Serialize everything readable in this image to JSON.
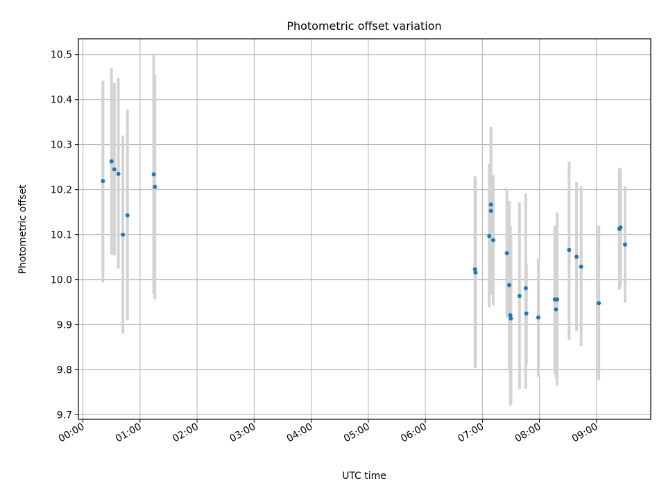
{
  "chart_data": {
    "type": "scatter",
    "title": "Photometric offset variation",
    "xlabel": "UTC time",
    "ylabel": "Photometric offset",
    "xlim": [
      -0.08,
      9.95
    ],
    "ylim": [
      9.69,
      10.535
    ],
    "x_ticks": [
      0,
      1,
      2,
      3,
      4,
      5,
      6,
      7,
      8,
      9
    ],
    "x_tick_labels": [
      "00:00",
      "01:00",
      "02:00",
      "03:00",
      "04:00",
      "05:00",
      "06:00",
      "07:00",
      "08:00",
      "09:00"
    ],
    "y_ticks": [
      9.7,
      9.8,
      9.9,
      10.0,
      10.1,
      10.2,
      10.3,
      10.4,
      10.5
    ],
    "y_tick_labels": [
      "9.7",
      "9.8",
      "9.9",
      "10.0",
      "10.1",
      "10.2",
      "10.3",
      "10.4",
      "10.5"
    ],
    "grid": true,
    "colors": {
      "point": "#1f77b4",
      "errorbar": "#d3d3d3",
      "grid": "#b0b0b0"
    },
    "points": [
      {
        "t": 0.35,
        "y": 10.219,
        "lo": 9.994,
        "hi": 10.442
      },
      {
        "t": 0.5,
        "y": 10.263,
        "lo": 10.056,
        "hi": 10.47
      },
      {
        "t": 0.55,
        "y": 10.245,
        "lo": 10.054,
        "hi": 10.437
      },
      {
        "t": 0.62,
        "y": 10.235,
        "lo": 10.025,
        "hi": 10.448
      },
      {
        "t": 0.7,
        "y": 10.1,
        "lo": 9.88,
        "hi": 10.32
      },
      {
        "t": 0.78,
        "y": 10.143,
        "lo": 9.91,
        "hi": 10.378
      },
      {
        "t": 1.24,
        "y": 10.234,
        "lo": 9.968,
        "hi": 10.5
      },
      {
        "t": 1.26,
        "y": 10.206,
        "lo": 9.957,
        "hi": 10.455
      },
      {
        "t": 6.87,
        "y": 10.023,
        "lo": 9.804,
        "hi": 10.23
      },
      {
        "t": 6.88,
        "y": 10.016,
        "lo": 9.804,
        "hi": 10.225
      },
      {
        "t": 7.12,
        "y": 10.097,
        "lo": 9.939,
        "hi": 10.258
      },
      {
        "t": 7.15,
        "y": 10.167,
        "lo": 9.992,
        "hi": 10.34
      },
      {
        "t": 7.15,
        "y": 10.153,
        "lo": 9.967,
        "hi": 10.338
      },
      {
        "t": 7.19,
        "y": 10.088,
        "lo": 9.943,
        "hi": 10.232
      },
      {
        "t": 7.43,
        "y": 10.059,
        "lo": 9.916,
        "hi": 10.203
      },
      {
        "t": 7.47,
        "y": 9.988,
        "lo": 9.801,
        "hi": 10.175
      },
      {
        "t": 7.49,
        "y": 9.921,
        "lo": 9.72,
        "hi": 10.12
      },
      {
        "t": 7.5,
        "y": 9.914,
        "lo": 9.726,
        "hi": 10.1
      },
      {
        "t": 7.65,
        "y": 9.964,
        "lo": 9.758,
        "hi": 10.172
      },
      {
        "t": 7.76,
        "y": 9.981,
        "lo": 9.758,
        "hi": 10.192
      },
      {
        "t": 7.77,
        "y": 9.925,
        "lo": 9.812,
        "hi": 10.035
      },
      {
        "t": 7.98,
        "y": 9.916,
        "lo": 9.784,
        "hi": 10.046
      },
      {
        "t": 8.27,
        "y": 9.956,
        "lo": 9.792,
        "hi": 10.12
      },
      {
        "t": 8.29,
        "y": 9.934,
        "lo": 9.782,
        "hi": 10.097
      },
      {
        "t": 8.31,
        "y": 9.956,
        "lo": 9.764,
        "hi": 10.149
      },
      {
        "t": 8.52,
        "y": 10.066,
        "lo": 9.867,
        "hi": 10.262
      },
      {
        "t": 8.65,
        "y": 10.051,
        "lo": 9.886,
        "hi": 10.217
      },
      {
        "t": 8.73,
        "y": 10.029,
        "lo": 9.853,
        "hi": 10.208
      },
      {
        "t": 9.04,
        "y": 9.948,
        "lo": 9.778,
        "hi": 10.12
      },
      {
        "t": 9.4,
        "y": 10.113,
        "lo": 9.978,
        "hi": 10.248
      },
      {
        "t": 9.42,
        "y": 10.116,
        "lo": 9.985,
        "hi": 10.248
      },
      {
        "t": 9.5,
        "y": 10.078,
        "lo": 9.949,
        "hi": 10.207
      }
    ]
  }
}
